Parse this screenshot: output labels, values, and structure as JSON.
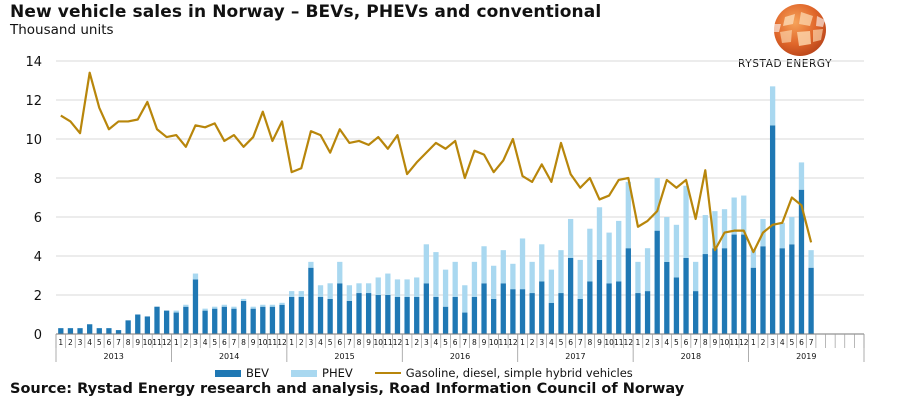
{
  "header": {
    "title": "New vehicle sales in Norway – BEVs, PHEVs and conventional",
    "subtitle": "Thousand units"
  },
  "logo": {
    "text": "RYSTAD ENERGY"
  },
  "footer": {
    "source": "Source: Rystad Energy research and analysis, Road Information Council of Norway"
  },
  "colors": {
    "bev": "#1f78b4",
    "phev": "#a9d8f0",
    "conventional": "#b8860b"
  },
  "chart_data": {
    "type": "bar",
    "stacked": true,
    "title": "New vehicle sales in Norway – BEVs, PHEVs and conventional",
    "ylabel": "Thousand units",
    "ylim": [
      0,
      14
    ],
    "yticks": [
      0,
      2,
      4,
      6,
      8,
      10,
      12,
      14
    ],
    "grid": true,
    "legend_position": "bottom",
    "years": [
      "2013",
      "2014",
      "2015",
      "2016",
      "2017",
      "2018",
      "2019"
    ],
    "month_labels": [
      "1",
      "2",
      "3",
      "4",
      "5",
      "6",
      "7",
      "8",
      "9",
      "10",
      "11",
      "12"
    ],
    "series": [
      {
        "name": "BEV",
        "type": "bar",
        "values": [
          0.3,
          0.3,
          0.3,
          0.5,
          0.3,
          0.3,
          0.2,
          0.7,
          1.0,
          0.9,
          1.4,
          1.2,
          1.1,
          1.4,
          2.8,
          1.2,
          1.3,
          1.4,
          1.3,
          1.7,
          1.3,
          1.4,
          1.4,
          1.5,
          1.9,
          1.9,
          3.4,
          1.9,
          1.8,
          2.6,
          1.7,
          2.1,
          2.1,
          2.0,
          2.0,
          1.9,
          1.9,
          1.9,
          2.6,
          1.9,
          1.4,
          1.9,
          1.1,
          1.9,
          2.6,
          1.8,
          2.6,
          2.3,
          2.3,
          2.1,
          2.7,
          1.6,
          2.1,
          3.9,
          1.8,
          2.7,
          3.8,
          2.6,
          2.7,
          4.4,
          2.1,
          2.2,
          5.3,
          3.7,
          2.9,
          3.9,
          2.2,
          4.1,
          4.4,
          4.4,
          5.1,
          5.1,
          3.4,
          4.5,
          10.7,
          4.4,
          4.6,
          7.4,
          3.4
        ]
      },
      {
        "name": "PHEV",
        "type": "bar",
        "values": [
          0.0,
          0.0,
          0.0,
          0.0,
          0.0,
          0.0,
          0.0,
          0.0,
          0.0,
          0.0,
          0.0,
          0.0,
          0.1,
          0.1,
          0.3,
          0.1,
          0.1,
          0.1,
          0.1,
          0.1,
          0.1,
          0.1,
          0.1,
          0.1,
          0.3,
          0.3,
          0.3,
          0.6,
          0.8,
          1.1,
          0.8,
          0.5,
          0.5,
          0.9,
          1.1,
          0.9,
          0.9,
          1.0,
          2.0,
          2.3,
          1.9,
          1.8,
          1.4,
          1.8,
          1.9,
          1.7,
          1.7,
          1.3,
          2.6,
          1.6,
          1.9,
          1.7,
          2.2,
          2.0,
          2.0,
          2.7,
          2.7,
          2.6,
          3.1,
          3.4,
          1.6,
          2.2,
          2.7,
          2.3,
          2.7,
          3.7,
          1.5,
          2.0,
          1.9,
          2.0,
          1.9,
          2.0,
          0.9,
          1.4,
          2.0,
          1.3,
          1.4,
          1.4,
          0.9
        ]
      },
      {
        "name": "Gasoline, diesel, simple hybrid vehicles",
        "type": "line",
        "values": [
          11.2,
          10.9,
          10.3,
          13.4,
          11.6,
          10.5,
          10.9,
          10.9,
          11.0,
          11.9,
          10.5,
          10.1,
          10.2,
          9.6,
          10.7,
          10.6,
          10.8,
          9.9,
          10.2,
          9.6,
          10.1,
          11.4,
          9.9,
          10.9,
          8.3,
          8.5,
          10.4,
          10.2,
          9.3,
          10.5,
          9.8,
          9.9,
          9.7,
          10.1,
          9.5,
          10.2,
          8.2,
          8.8,
          9.3,
          9.8,
          9.5,
          9.9,
          8.0,
          9.4,
          9.2,
          8.3,
          8.9,
          10.0,
          8.1,
          7.8,
          8.7,
          7.8,
          9.8,
          8.2,
          7.5,
          8.0,
          6.9,
          7.1,
          7.9,
          8.0,
          5.5,
          5.8,
          6.3,
          7.9,
          7.5,
          7.9,
          5.9,
          8.4,
          4.3,
          5.2,
          5.3,
          5.3,
          4.2,
          5.2,
          5.6,
          5.7,
          7.0,
          6.6,
          4.7
        ]
      }
    ]
  }
}
